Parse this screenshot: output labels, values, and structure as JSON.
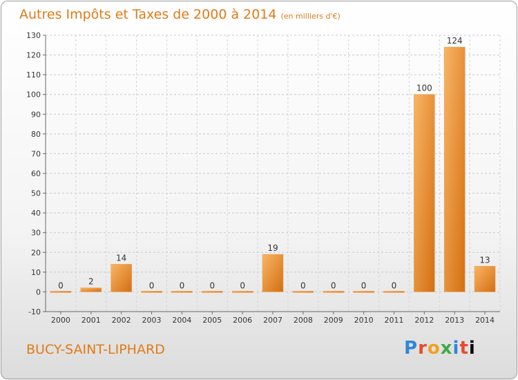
{
  "header": {
    "title": "Autres Impôts et Taxes de 2000 à 2014",
    "subtitle": "(en milliers d'€)"
  },
  "footer": {
    "commune": "BUCY-SAINT-LIPHARD",
    "logo_letters": [
      "P",
      "r",
      "o",
      "x",
      "i",
      "t",
      "i"
    ]
  },
  "colors": {
    "bar_light": "#f7a855",
    "bar_dark": "#d9761a",
    "accent": "#e07a16"
  },
  "chart_data": {
    "type": "bar",
    "categories": [
      "2000",
      "2001",
      "2002",
      "2003",
      "2004",
      "2005",
      "2006",
      "2007",
      "2008",
      "2009",
      "2010",
      "2011",
      "2012",
      "2013",
      "2014"
    ],
    "values": [
      0,
      2,
      14,
      0,
      0,
      0,
      0,
      19,
      0,
      0,
      0,
      0,
      100,
      124,
      13
    ],
    "ylim": [
      -10,
      130
    ],
    "yticks": [
      -10,
      0,
      10,
      20,
      30,
      40,
      50,
      60,
      70,
      80,
      90,
      100,
      110,
      120,
      130
    ],
    "grid": "horizontal-dashed"
  }
}
